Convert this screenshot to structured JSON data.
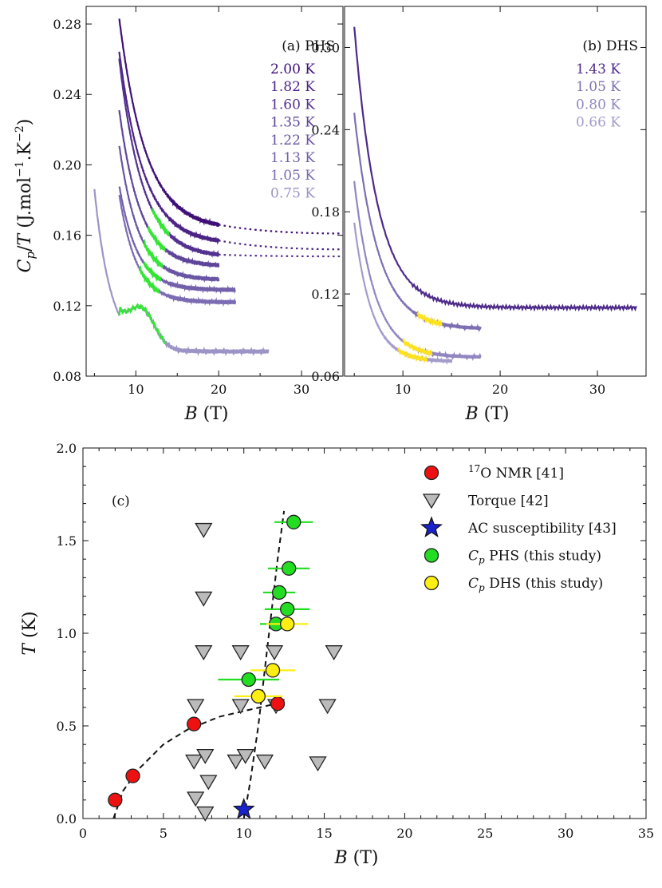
{
  "chart_data": [
    {
      "id": "a",
      "type": "line",
      "panel_label": "(a) PHS",
      "xlabel": "B",
      "xunit": "(T)",
      "ylabel": "Cp/T (J.mol⁻¹.K⁻²)",
      "xlim": [
        4,
        35
      ],
      "ylim": [
        0.08,
        0.29
      ],
      "xticks": [
        10,
        20,
        30
      ],
      "yticks": [
        0.08,
        0.12,
        0.16,
        0.2,
        0.24,
        0.28
      ],
      "ytick_labels": [
        "0.08",
        "0.12",
        "0.16",
        "0.20",
        "0.24",
        "0.28"
      ],
      "series": [
        {
          "name": "2.00 K",
          "color": "#3f0f78",
          "x_start": 8.0,
          "x_end": 20.0,
          "y_start": 0.283,
          "y_end": 0.166,
          "tau": 3.2,
          "dotted_to": 35.0,
          "dotted_y": 0.161
        },
        {
          "name": "1.82 K",
          "color": "#4a2385",
          "x_start": 8.0,
          "x_end": 20.0,
          "y_start": 0.264,
          "y_end": 0.157,
          "tau": 3.0,
          "dotted_to": 35.0,
          "dotted_y": 0.152
        },
        {
          "name": "1.60 K",
          "color": "#533191",
          "x_start": 8.0,
          "x_end": 20.0,
          "y_start": 0.26,
          "y_end": 0.149,
          "tau": 2.8,
          "dotted_to": 35.0,
          "dotted_y": 0.148,
          "highlight": [
            12.0,
            14.0
          ]
        },
        {
          "name": "1.35 K",
          "color": "#5e459b",
          "x_start": 8.0,
          "x_end": 20.0,
          "y_start": 0.231,
          "y_end": 0.143,
          "tau": 2.5,
          "highlight": [
            11.5,
            13.5
          ]
        },
        {
          "name": "1.22 K",
          "color": "#6a55a4",
          "x_start": 8.0,
          "x_end": 20.0,
          "y_start": 0.211,
          "y_end": 0.135,
          "tau": 2.3,
          "highlight": [
            11.0,
            13.2
          ]
        },
        {
          "name": "1.13 K",
          "color": "#7260aa",
          "x_start": 8.0,
          "x_end": 22.0,
          "y_start": 0.188,
          "y_end": 0.129,
          "tau": 2.2,
          "highlight": [
            11.0,
            13.0
          ]
        },
        {
          "name": "1.05 K",
          "color": "#7b6bb2",
          "x_start": 8.0,
          "x_end": 22.0,
          "y_start": 0.183,
          "y_end": 0.122,
          "tau": 2.1,
          "highlight": [
            10.5,
            12.8
          ]
        },
        {
          "name": "0.75 K",
          "color": "#9c94c6",
          "x_start": 5.0,
          "x_end": 26.0,
          "y_start": 0.186,
          "y_end": 0.094,
          "tau": 2.0,
          "shoulder": [
            8.0,
            13.5
          ],
          "highlight": [
            8.0,
            13.5
          ]
        }
      ]
    },
    {
      "id": "b",
      "type": "line",
      "panel_label": "(b) DHS",
      "xlabel": "B",
      "xunit": "(T)",
      "xlim": [
        4,
        35
      ],
      "ylim": [
        0.06,
        0.33
      ],
      "xticks": [
        10,
        20,
        30
      ],
      "yticks": [
        0.06,
        0.12,
        0.18,
        0.24,
        0.3
      ],
      "ytick_labels": [
        "0.06",
        "0.12",
        "0.18",
        "0.24",
        "0.30"
      ],
      "series": [
        {
          "name": "1.43 K",
          "color": "#4d2a8a",
          "x_start": 5.0,
          "x_end": 34.0,
          "y_start": 0.315,
          "y_end": 0.11,
          "tau": 2.4
        },
        {
          "name": "1.05 K",
          "color": "#7e6fb3",
          "x_start": 5.0,
          "x_end": 18.0,
          "y_start": 0.252,
          "y_end": 0.095,
          "tau": 2.4,
          "highlight": [
            11.5,
            14.0
          ]
        },
        {
          "name": "0.80 K",
          "color": "#9186c1",
          "x_start": 5.0,
          "x_end": 18.0,
          "y_start": 0.202,
          "y_end": 0.074,
          "tau": 2.1,
          "highlight": [
            10.0,
            13.0
          ]
        },
        {
          "name": "0.66 K",
          "color": "#a39ccb",
          "x_start": 5.0,
          "x_end": 15.0,
          "y_start": 0.172,
          "y_end": 0.071,
          "tau": 1.8,
          "highlight": [
            9.5,
            12.5
          ]
        }
      ]
    },
    {
      "id": "c",
      "type": "scatter",
      "panel_label": "(c)",
      "xlabel": "B",
      "xunit": "(T)",
      "ylabel": "T",
      "yunit": "(K)",
      "xlim": [
        0,
        35
      ],
      "ylim": [
        0,
        2.0
      ],
      "xticks": [
        0,
        5,
        10,
        15,
        20,
        25,
        30,
        35
      ],
      "xtick_labels": [
        "0",
        "5",
        "10",
        "15",
        "20",
        "25",
        "30",
        "35"
      ],
      "yticks": [
        0.0,
        0.5,
        1.0,
        1.5,
        2.0
      ],
      "ytick_labels": [
        "0.0",
        "0.5",
        "1.0",
        "1.5",
        "2.0"
      ],
      "legend_location": "top-right",
      "legend": [
        {
          "sup": "17",
          "text": "O NMR [41]",
          "marker": "circle",
          "color": "#ee1111"
        },
        {
          "sup": "",
          "text": "Torque [42]",
          "marker": "triangle-down",
          "color": "#bbbbbb"
        },
        {
          "sup": "",
          "text": "AC susceptibility [43]",
          "marker": "star",
          "color": "#1a22cc"
        },
        {
          "sup": "",
          "italic": "Cp",
          "text": " PHS (this study)",
          "marker": "circle",
          "color": "#22dd22"
        },
        {
          "sup": "",
          "italic": "Cp",
          "text": " DHS (this study)",
          "marker": "circle",
          "color": "#ffee11"
        }
      ],
      "nmr": [
        [
          2.0,
          0.1
        ],
        [
          3.1,
          0.23
        ],
        [
          6.9,
          0.51
        ],
        [
          12.1,
          0.62
        ]
      ],
      "torque": [
        [
          7.5,
          1.56
        ],
        [
          7.5,
          1.19
        ],
        [
          7.5,
          0.9
        ],
        [
          9.8,
          0.9
        ],
        [
          11.9,
          0.9
        ],
        [
          15.6,
          0.9
        ],
        [
          7.0,
          0.61
        ],
        [
          9.8,
          0.61
        ],
        [
          12.0,
          0.61
        ],
        [
          15.2,
          0.61
        ],
        [
          6.9,
          0.31
        ],
        [
          7.6,
          0.34
        ],
        [
          9.5,
          0.31
        ],
        [
          10.1,
          0.34
        ],
        [
          11.3,
          0.31
        ],
        [
          14.6,
          0.3
        ],
        [
          7.0,
          0.11
        ],
        [
          7.8,
          0.2
        ],
        [
          7.6,
          0.03
        ]
      ],
      "ac_susceptibility": [
        [
          10.0,
          0.04
        ]
      ],
      "cp_phs": [
        [
          13.1,
          1.6,
          1.2
        ],
        [
          12.8,
          1.35,
          1.3
        ],
        [
          12.2,
          1.22,
          1.0
        ],
        [
          12.7,
          1.13,
          1.4
        ],
        [
          12.0,
          1.05,
          1.0
        ],
        [
          10.3,
          0.75,
          1.9
        ]
      ],
      "cp_dhs": [
        [
          12.7,
          1.05,
          1.3
        ],
        [
          11.8,
          0.8,
          1.4
        ],
        [
          10.9,
          0.66,
          1.5
        ]
      ],
      "fit_nmr": [
        [
          1.9,
          0.0
        ],
        [
          2.5,
          0.15
        ],
        [
          3.5,
          0.27
        ],
        [
          5.0,
          0.4
        ],
        [
          6.5,
          0.48
        ],
        [
          8.5,
          0.55
        ],
        [
          10.5,
          0.59
        ],
        [
          12.0,
          0.62
        ]
      ],
      "fit_cp": [
        [
          10.0,
          0.0
        ],
        [
          10.4,
          0.2
        ],
        [
          10.9,
          0.5
        ],
        [
          11.3,
          0.8
        ],
        [
          11.7,
          1.1
        ],
        [
          12.1,
          1.4
        ],
        [
          12.5,
          1.66
        ]
      ]
    }
  ]
}
